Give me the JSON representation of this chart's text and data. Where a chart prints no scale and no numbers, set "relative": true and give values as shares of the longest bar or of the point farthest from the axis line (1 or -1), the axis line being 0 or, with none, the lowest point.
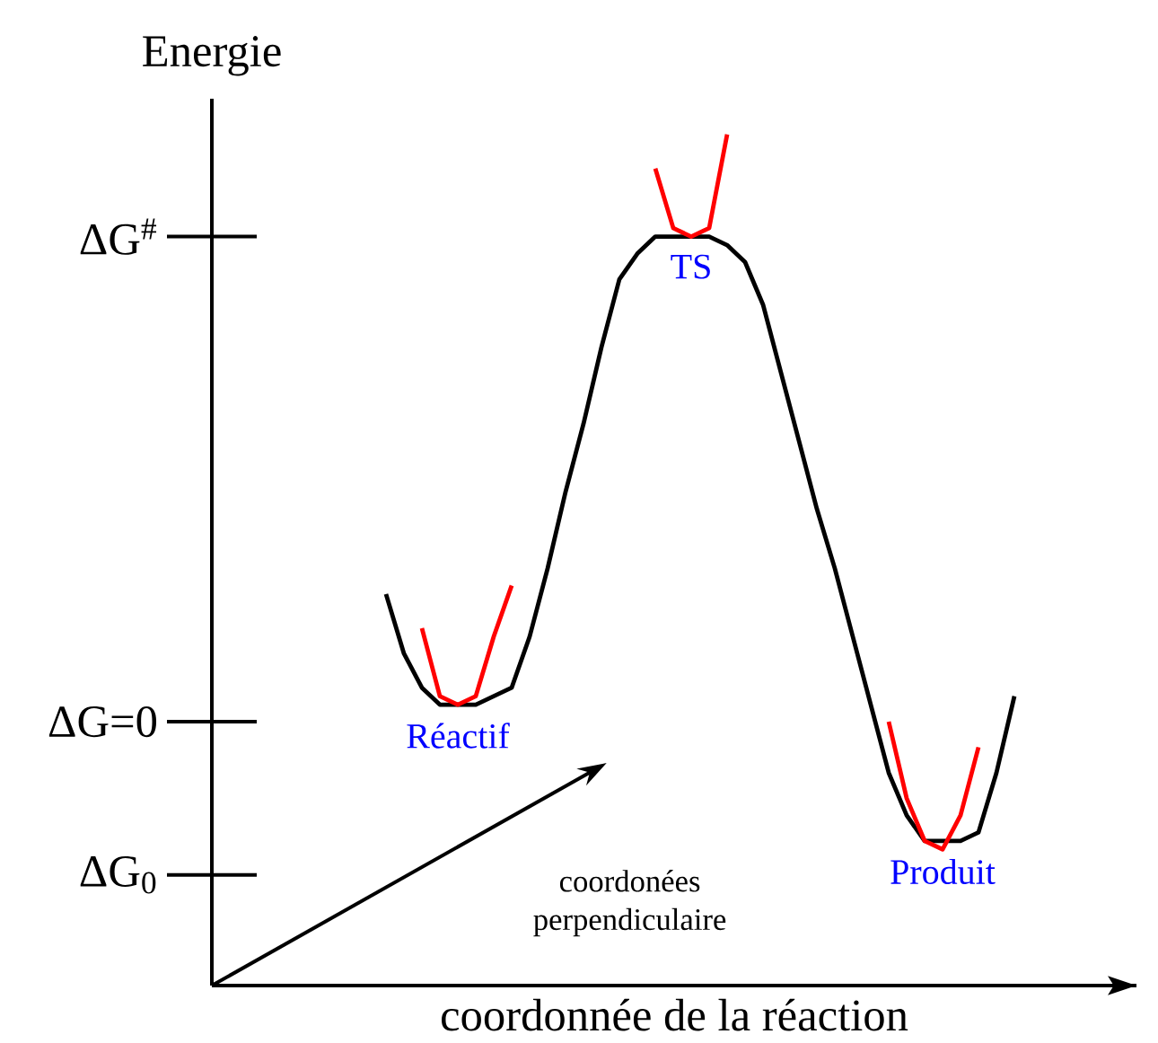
{
  "chart_data": {
    "type": "line",
    "relative": true,
    "xlabel": "coordonnée de la réaction",
    "ylabel": "Energie",
    "categories": [
      null,
      null,
      null,
      null,
      null,
      null,
      null,
      null,
      null,
      null,
      null,
      null,
      null,
      null,
      null,
      null,
      null,
      null,
      null,
      null,
      null,
      null,
      null,
      null,
      null,
      null,
      null,
      null,
      null,
      null,
      null,
      null,
      null,
      null,
      null,
      null,
      null,
      null,
      null,
      null,
      null,
      null,
      null,
      null,
      null,
      null,
      null,
      null,
      null,
      null,
      null
    ],
    "series": [
      {
        "color": "#000000",
        "values": [
          null,
          null,
          null,
          null,
          null,
          null,
          null,
          null,
          null,
          0.46,
          0.39,
          0.35,
          0.33,
          0.33,
          0.33,
          0.34,
          0.35,
          0.41,
          0.49,
          0.58,
          0.66,
          0.75,
          0.83,
          0.86,
          0.88,
          0.88,
          0.88,
          0.88,
          0.87,
          0.85,
          0.8,
          0.72,
          0.64,
          0.56,
          0.49,
          0.41,
          0.33,
          0.25,
          0.2,
          0.17,
          0.17,
          0.17,
          0.18,
          0.25,
          0.34,
          null,
          null,
          null,
          null,
          null,
          null
        ]
      },
      {
        "color": "#ff0000",
        "values": [
          null,
          null,
          null,
          null,
          null,
          null,
          null,
          null,
          null,
          null,
          null,
          0.42,
          0.34,
          0.33,
          0.34,
          0.41,
          0.47,
          null,
          null,
          null,
          null,
          null,
          null,
          null,
          null,
          null,
          null,
          null,
          null,
          null,
          null,
          null,
          null,
          null,
          null,
          null,
          null,
          null,
          null,
          null,
          null,
          null,
          null,
          null,
          null,
          null,
          null,
          null,
          null,
          null,
          null
        ]
      },
      {
        "color": "#ff0000",
        "values": [
          null,
          null,
          null,
          null,
          null,
          null,
          null,
          null,
          null,
          null,
          null,
          null,
          null,
          null,
          null,
          null,
          null,
          null,
          null,
          null,
          null,
          null,
          null,
          null,
          0.96,
          0.89,
          0.88,
          0.89,
          1,
          null,
          null,
          null,
          null,
          null,
          null,
          null,
          null,
          null,
          null,
          null,
          null,
          null,
          null,
          null,
          null,
          null,
          null,
          null,
          null,
          null,
          null
        ]
      },
      {
        "color": "#ff0000",
        "values": [
          null,
          null,
          null,
          null,
          null,
          null,
          null,
          null,
          null,
          null,
          null,
          null,
          null,
          null,
          null,
          null,
          null,
          null,
          null,
          null,
          null,
          null,
          null,
          null,
          null,
          null,
          null,
          null,
          null,
          null,
          null,
          null,
          null,
          null,
          null,
          null,
          null,
          0.31,
          0.22,
          0.17,
          0.16,
          0.2,
          0.28,
          null,
          null,
          null,
          null,
          null,
          null,
          null,
          null
        ]
      }
    ],
    "ref_lines": [
      {
        "axis": "y",
        "value": 0.13,
        "label": "ΔG$_{0}$"
      },
      {
        "axis": "y",
        "value": 0.31,
        "label": "ΔG=0"
      },
      {
        "axis": "y",
        "value": 0.88,
        "label": "ΔG$^{#}$"
      }
    ],
    "annotations": [
      "Réactif",
      "TS",
      "Produit",
      "coordonées perpendiculaire"
    ]
  }
}
